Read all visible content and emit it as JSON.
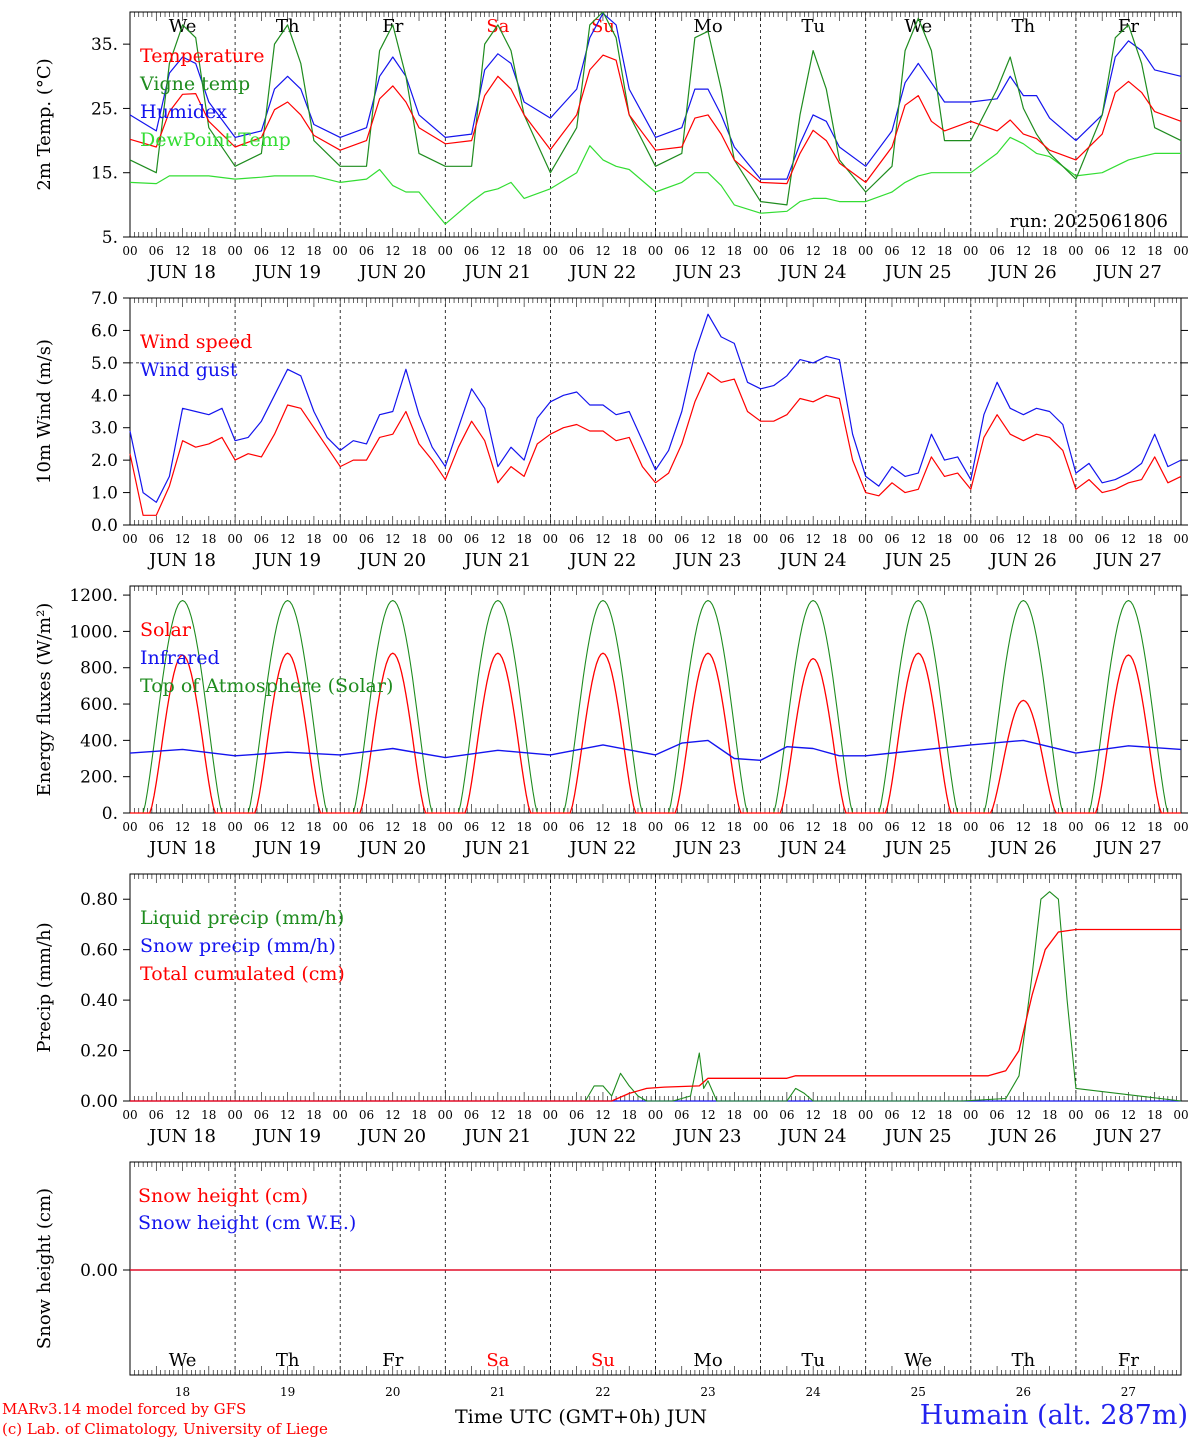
{
  "colors": {
    "red": "#ff0000",
    "green": "#1f8c1f",
    "blue": "#1414ee",
    "lightgreen": "#33dd33",
    "weekday": "#000000",
    "weekend": "#ff0000",
    "station": "#2222ee"
  },
  "days": {
    "names": [
      "We",
      "Th",
      "Fr",
      "Sa",
      "Su",
      "Mo",
      "Tu",
      "We",
      "Th",
      "Fr"
    ],
    "weekend": [
      false,
      false,
      false,
      true,
      true,
      false,
      false,
      false,
      false,
      false
    ],
    "dates": [
      "JUN 18",
      "JUN 19",
      "JUN 20",
      "JUN 21",
      "JUN 22",
      "JUN 23",
      "JUN 24",
      "JUN 25",
      "JUN 26",
      "JUN 27"
    ],
    "day_numbers": [
      "18",
      "19",
      "20",
      "21",
      "22",
      "23",
      "24",
      "25",
      "26",
      "27"
    ],
    "hour_ticks": [
      "00",
      "06",
      "12",
      "18"
    ],
    "final_tick": "00"
  },
  "footer": {
    "credit1": "MARv3.14 model forced by GFS",
    "credit2": "(c) Lab. of Climatology, University of Liege",
    "x_caption": "Time UTC (GMT+0h) JUN",
    "station": "Humain (alt. 287m)"
  },
  "chart_data": [
    {
      "type": "line",
      "ylabel": "2m Temp. (°C)",
      "ylim": [
        5,
        40
      ],
      "yticks": [
        5,
        15,
        25,
        35
      ],
      "ytick_labels": [
        "5.",
        "15.",
        "25.",
        "35."
      ],
      "run_label": "run: 2025061806",
      "x_hours": [
        0,
        6,
        9,
        12,
        15,
        18,
        24,
        30,
        33,
        36,
        39,
        42,
        48,
        54,
        57,
        60,
        63,
        66,
        72,
        78,
        81,
        84,
        87,
        90,
        96,
        102,
        105,
        108,
        111,
        114,
        120,
        126,
        129,
        132,
        135,
        138,
        144,
        150,
        153,
        156,
        159,
        162,
        168,
        174,
        177,
        180,
        183,
        186,
        192,
        198,
        201,
        204,
        207,
        210,
        216,
        222,
        225,
        228,
        231,
        234,
        240
      ],
      "series": [
        {
          "name": "Temperature",
          "color": "red",
          "values": [
            20.2,
            19,
            24.5,
            27.2,
            27.3,
            23,
            19,
            20.5,
            24.8,
            26,
            24,
            20.8,
            18.5,
            20,
            26.5,
            28.5,
            26,
            22,
            19.5,
            20,
            27,
            30,
            28,
            24,
            18.6,
            24,
            31,
            33.3,
            32.5,
            24,
            18.5,
            19,
            23.5,
            24,
            21,
            17,
            13.5,
            13.3,
            18,
            21.6,
            20,
            16.5,
            13.5,
            19,
            25.5,
            27,
            23,
            21.5,
            23,
            21.5,
            23.2,
            21,
            20.3,
            18.5,
            17,
            21,
            27.5,
            29.2,
            27.5,
            24.5,
            23
          ]
        },
        {
          "name": "Vigne temp",
          "color": "green",
          "values": [
            17,
            15,
            32,
            38,
            36,
            22,
            16,
            18,
            35,
            38,
            32,
            20,
            16,
            16,
            34,
            38,
            30,
            18,
            16,
            16,
            35,
            38,
            34,
            24,
            15,
            22,
            38,
            40,
            36,
            24,
            16,
            18,
            36,
            37,
            28,
            17,
            10.5,
            10,
            24,
            34,
            28,
            17,
            12,
            16,
            34,
            39,
            34,
            20,
            20,
            28,
            33,
            25,
            21,
            18,
            14,
            24,
            36,
            38,
            32,
            22,
            20
          ]
        },
        {
          "name": "Humidex",
          "color": "blue",
          "values": [
            24,
            21.5,
            30.5,
            33,
            32,
            26,
            20.5,
            21.5,
            28,
            30,
            28,
            22.5,
            20.5,
            22,
            30,
            33,
            30,
            24,
            20.5,
            21,
            31,
            33.5,
            32,
            26,
            23.5,
            28,
            36,
            39.8,
            38,
            28,
            20.5,
            22,
            28,
            28,
            24,
            19,
            14,
            14,
            19.5,
            24,
            23,
            19,
            16,
            21.5,
            29,
            32,
            29,
            26,
            26,
            26.5,
            30,
            27,
            27,
            23.5,
            20,
            24,
            33,
            35.5,
            34,
            31,
            30
          ]
        },
        {
          "name": "DewPoint Temp",
          "color": "lightgreen",
          "values": [
            13.5,
            13.3,
            14.5,
            14.5,
            14.5,
            14.5,
            14,
            14.3,
            14.5,
            14.5,
            14.5,
            14.5,
            13.5,
            14,
            15.5,
            13,
            12,
            12,
            7,
            10.5,
            12,
            12.5,
            13.5,
            11,
            12.5,
            15,
            19.2,
            17,
            16,
            15.5,
            12,
            13.5,
            15,
            15,
            13,
            10,
            8.7,
            9,
            10.5,
            11,
            11,
            10.5,
            10.5,
            12,
            13.5,
            14.5,
            15,
            15,
            15,
            18,
            20.5,
            19.5,
            18,
            17.5,
            14.5,
            15,
            16,
            17,
            17.5,
            18,
            18
          ]
        }
      ],
      "legend": [
        "Temperature",
        "Vigne temp",
        "Humidex",
        "DewPoint Temp"
      ]
    },
    {
      "type": "line",
      "ylabel": "10m Wind (m/s)",
      "ylim": [
        0,
        7
      ],
      "yticks": [
        0,
        1,
        2,
        3,
        4,
        5,
        6,
        7
      ],
      "ytick_labels": [
        "0.0",
        "1.0",
        "2.0",
        "3.0",
        "4.0",
        "5.0",
        "6.0",
        "7.0"
      ],
      "ref_line": 5,
      "x_hours": [
        0,
        3,
        6,
        9,
        12,
        15,
        18,
        21,
        24,
        27,
        30,
        33,
        36,
        39,
        42,
        45,
        48,
        51,
        54,
        57,
        60,
        63,
        66,
        69,
        72,
        75,
        78,
        81,
        84,
        87,
        90,
        93,
        96,
        99,
        102,
        105,
        108,
        111,
        114,
        117,
        120,
        123,
        126,
        129,
        132,
        135,
        138,
        141,
        144,
        147,
        150,
        153,
        156,
        159,
        162,
        165,
        168,
        171,
        174,
        177,
        180,
        183,
        186,
        189,
        192,
        195,
        198,
        201,
        204,
        207,
        210,
        213,
        216,
        219,
        222,
        225,
        228,
        231,
        234,
        237,
        240
      ],
      "series": [
        {
          "name": "Wind speed",
          "color": "red",
          "values": [
            2.2,
            0.3,
            0.3,
            1.2,
            2.6,
            2.4,
            2.5,
            2.7,
            2.0,
            2.2,
            2.1,
            2.8,
            3.7,
            3.6,
            3.0,
            2.4,
            1.8,
            2.0,
            2.0,
            2.7,
            2.8,
            3.5,
            2.5,
            2.0,
            1.4,
            2.4,
            3.2,
            2.6,
            1.3,
            1.8,
            1.5,
            2.5,
            2.8,
            3.0,
            3.1,
            2.9,
            2.9,
            2.6,
            2.7,
            1.8,
            1.3,
            1.6,
            2.5,
            3.8,
            4.7,
            4.4,
            4.5,
            3.5,
            3.2,
            3.2,
            3.4,
            3.9,
            3.8,
            4.0,
            3.9,
            2.0,
            1.0,
            0.9,
            1.3,
            1.0,
            1.1,
            2.1,
            1.5,
            1.6,
            1.1,
            2.7,
            3.4,
            2.8,
            2.6,
            2.8,
            2.7,
            2.3,
            1.1,
            1.4,
            1.0,
            1.1,
            1.3,
            1.4,
            2.1,
            1.3,
            1.5
          ]
        },
        {
          "name": "Wind gust",
          "color": "blue",
          "values": [
            2.9,
            1.0,
            0.7,
            1.5,
            3.6,
            3.5,
            3.4,
            3.6,
            2.6,
            2.7,
            3.2,
            4.0,
            4.8,
            4.6,
            3.5,
            2.7,
            2.3,
            2.6,
            2.5,
            3.4,
            3.5,
            4.8,
            3.4,
            2.4,
            1.8,
            3.0,
            4.2,
            3.6,
            1.8,
            2.4,
            2.0,
            3.3,
            3.8,
            4.0,
            4.1,
            3.7,
            3.7,
            3.4,
            3.5,
            2.6,
            1.7,
            2.3,
            3.5,
            5.3,
            6.5,
            5.8,
            5.6,
            4.4,
            4.2,
            4.3,
            4.6,
            5.1,
            5.0,
            5.2,
            5.1,
            2.8,
            1.5,
            1.2,
            1.8,
            1.5,
            1.6,
            2.8,
            2.0,
            2.1,
            1.4,
            3.4,
            4.4,
            3.6,
            3.4,
            3.6,
            3.5,
            3.1,
            1.6,
            1.9,
            1.3,
            1.4,
            1.6,
            1.9,
            2.8,
            1.8,
            2.0
          ]
        }
      ],
      "legend": [
        "Wind speed",
        "Wind gust"
      ]
    },
    {
      "type": "line",
      "ylabel": "Energy fluxes (W/m²)",
      "ylim": [
        0,
        1250
      ],
      "yticks": [
        0,
        200,
        400,
        600,
        800,
        1000,
        1200
      ],
      "ytick_labels": [
        "0.",
        "200.",
        "400.",
        "600.",
        "800.",
        "1000.",
        "1200."
      ],
      "solar_peaks": [
        870,
        880,
        880,
        880,
        880,
        880,
        850,
        880,
        620,
        870
      ],
      "toa_peak": 1170,
      "infrared": {
        "x_hours": [
          0,
          12,
          24,
          36,
          48,
          60,
          72,
          84,
          96,
          108,
          120,
          126,
          132,
          138,
          144,
          150,
          156,
          162,
          168,
          180,
          192,
          204,
          216,
          228,
          240
        ],
        "values": [
          330,
          350,
          315,
          335,
          320,
          355,
          305,
          345,
          320,
          375,
          320,
          385,
          400,
          300,
          290,
          365,
          355,
          315,
          315,
          345,
          375,
          400,
          330,
          370,
          350
        ]
      },
      "series": [
        {
          "name": "Solar",
          "color": "red"
        },
        {
          "name": "Infrared",
          "color": "blue"
        },
        {
          "name": "Top of Atmosphere (Solar)",
          "color": "green"
        }
      ],
      "legend": [
        "Solar",
        "Infrared",
        "Top of Atmosphere (Solar)"
      ]
    },
    {
      "type": "line",
      "ylabel": "Precip (mm/h)",
      "ylim": [
        0,
        0.9
      ],
      "yticks": [
        0,
        0.2,
        0.4,
        0.6,
        0.8
      ],
      "ytick_labels": [
        "0.00",
        "0.20",
        "0.40",
        "0.60",
        "0.80"
      ],
      "liquid": {
        "x_hours": [
          0,
          104,
          106,
          108,
          110,
          112,
          114,
          116,
          118,
          120,
          124,
          128,
          130,
          131,
          132,
          134,
          138,
          150,
          152,
          154,
          156,
          190,
          200,
          203,
          206,
          208,
          210,
          212,
          214,
          216,
          240
        ],
        "values": [
          0,
          0,
          0.06,
          0.06,
          0.02,
          0.11,
          0.06,
          0.02,
          0,
          0,
          0,
          0.02,
          0.19,
          0.05,
          0.08,
          0,
          0,
          0,
          0.05,
          0.03,
          0,
          0,
          0.01,
          0.1,
          0.5,
          0.8,
          0.83,
          0.8,
          0.4,
          0.05,
          0
        ]
      },
      "cumulated": {
        "x_hours": [
          0,
          110,
          114,
          118,
          122,
          130,
          132,
          140,
          150,
          152,
          196,
          200,
          203,
          206,
          209,
          212,
          216,
          240
        ],
        "values": [
          0,
          0,
          0.03,
          0.05,
          0.055,
          0.06,
          0.09,
          0.09,
          0.09,
          0.1,
          0.1,
          0.12,
          0.2,
          0.42,
          0.6,
          0.67,
          0.68,
          0.68
        ]
      },
      "series": [
        {
          "name": "Liquid precip (mm/h)",
          "color": "green"
        },
        {
          "name": "Snow precip (mm/h)",
          "color": "blue"
        },
        {
          "name": "Total cumulated (cm)",
          "color": "red"
        }
      ],
      "legend": [
        "Liquid precip (mm/h)",
        "Snow precip (mm/h)",
        "Total cumulated (cm)"
      ]
    },
    {
      "type": "line",
      "ylabel": "Snow height (cm)",
      "yticks": [
        0
      ],
      "ytick_labels": [
        "0.00"
      ],
      "series": [
        {
          "name": "Snow height (cm)",
          "color": "red",
          "value": 0
        },
        {
          "name": "Snow height (cm W.E.)",
          "color": "blue",
          "value": 0
        }
      ],
      "legend": [
        "Snow height (cm)",
        "Snow height (cm W.E.)"
      ]
    }
  ]
}
